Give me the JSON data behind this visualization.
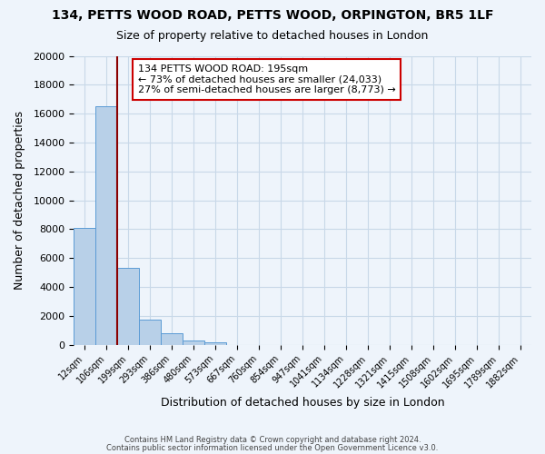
{
  "title": "134, PETTS WOOD ROAD, PETTS WOOD, ORPINGTON, BR5 1LF",
  "subtitle": "Size of property relative to detached houses in London",
  "xlabel": "Distribution of detached houses by size in London",
  "ylabel": "Number of detached properties",
  "bin_labels": [
    "12sqm",
    "106sqm",
    "199sqm",
    "293sqm",
    "386sqm",
    "480sqm",
    "573sqm",
    "667sqm",
    "760sqm",
    "854sqm",
    "947sqm",
    "1041sqm",
    "1134sqm",
    "1228sqm",
    "1321sqm",
    "1415sqm",
    "1508sqm",
    "1602sqm",
    "1695sqm",
    "1789sqm",
    "1882sqm"
  ],
  "bar_heights": [
    8100,
    16500,
    5300,
    1750,
    800,
    280,
    180,
    0,
    0,
    0,
    0,
    0,
    0,
    0,
    0,
    0,
    0,
    0,
    0,
    0,
    0
  ],
  "bar_color": "#b8d0e8",
  "bar_edge_color": "#5b9bd5",
  "ylim": [
    0,
    20000
  ],
  "yticks": [
    0,
    2000,
    4000,
    6000,
    8000,
    10000,
    12000,
    14000,
    16000,
    18000,
    20000
  ],
  "property_line_color": "#8b0000",
  "annotation_title": "134 PETTS WOOD ROAD: 195sqm",
  "annotation_line1": "← 73% of detached houses are smaller (24,033)",
  "annotation_line2": "27% of semi-detached houses are larger (8,773) →",
  "annotation_box_color": "#ffffff",
  "annotation_box_edge": "#cc0000",
  "footer1": "Contains HM Land Registry data © Crown copyright and database right 2024.",
  "footer2": "Contains public sector information licensed under the Open Government Licence v3.0.",
  "grid_color": "#c8d8e8",
  "background_color": "#eef4fb",
  "plot_bg_color": "#eef4fb"
}
